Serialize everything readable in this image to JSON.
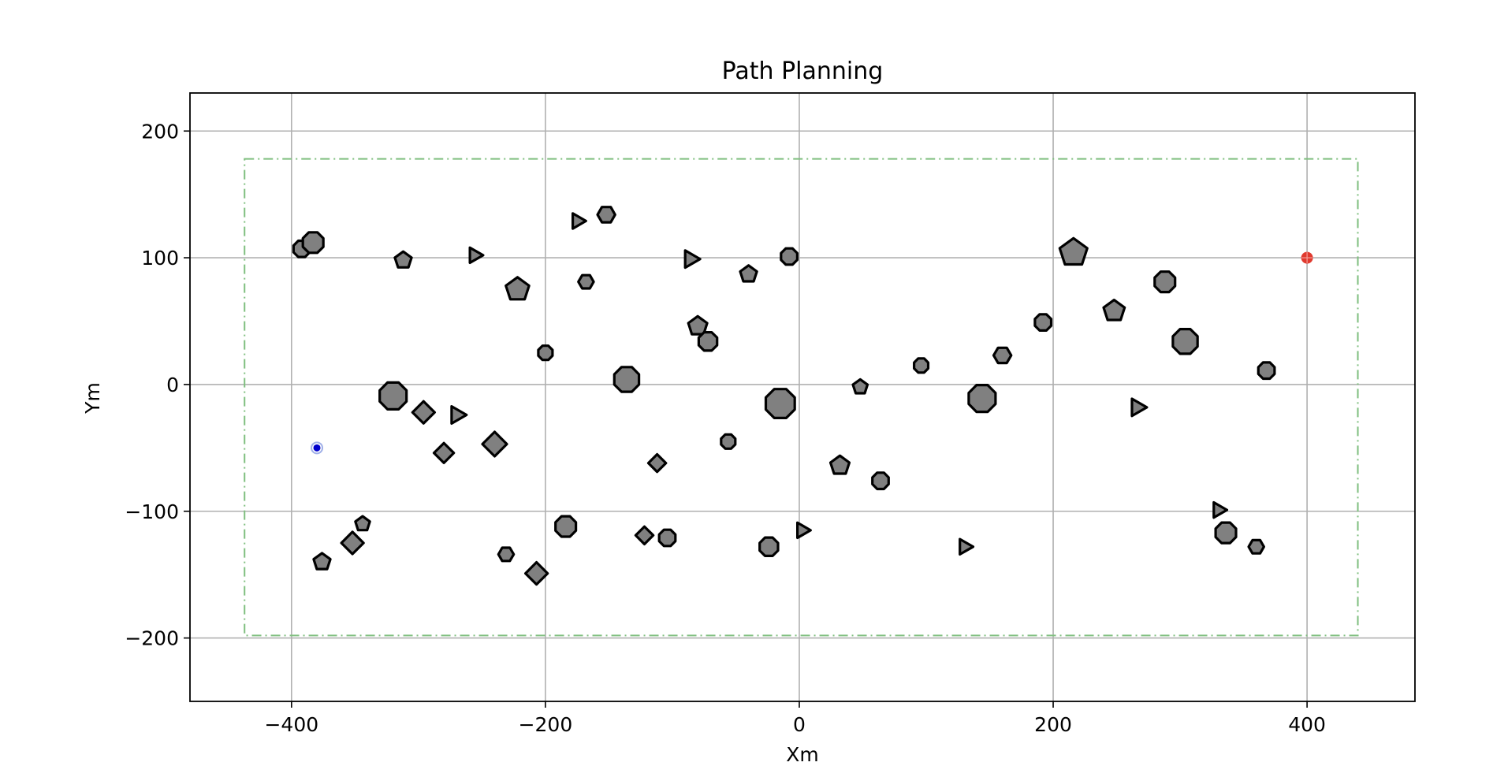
{
  "chart_data": {
    "type": "scatter",
    "title": "Path Planning",
    "xlabel": "Xm",
    "ylabel": "Ym",
    "xlim": [
      -480,
      485
    ],
    "ylim": [
      -250,
      230
    ],
    "xticks": [
      -400,
      -200,
      0,
      200,
      400
    ],
    "yticks": [
      -200,
      -100,
      0,
      100,
      200
    ],
    "xtick_labels": [
      "−400",
      "−200",
      "0",
      "200",
      "400"
    ],
    "ytick_labels": [
      "−200",
      "−100",
      "0",
      "100",
      "200"
    ],
    "grid": true,
    "boundary": {
      "x": [
        -437,
        440
      ],
      "y": [
        -198,
        178
      ],
      "color": "#7fbf7f",
      "style": "dash-dot"
    },
    "start": {
      "x": -380,
      "y": -50,
      "color": "#0000cc"
    },
    "goal": {
      "x": 400,
      "y": 100,
      "color": "#e03a2f"
    },
    "obstacle_color": "#808080",
    "obstacles": [
      {
        "x": -392,
        "y": 107,
        "shape": "octagon",
        "size": 7
      },
      {
        "x": -383,
        "y": 112,
        "shape": "octagon",
        "size": 9
      },
      {
        "x": -312,
        "y": 98,
        "shape": "pentagon",
        "size": 7
      },
      {
        "x": -256,
        "y": 102,
        "shape": "triangle",
        "size": 7
      },
      {
        "x": -222,
        "y": 75,
        "shape": "pentagon",
        "size": 10
      },
      {
        "x": -175,
        "y": 129,
        "shape": "triangle",
        "size": 7
      },
      {
        "x": -152,
        "y": 134,
        "shape": "hexagon",
        "size": 7
      },
      {
        "x": -168,
        "y": 81,
        "shape": "hexagon",
        "size": 6
      },
      {
        "x": -200,
        "y": 25,
        "shape": "octagon",
        "size": 6
      },
      {
        "x": -320,
        "y": -9,
        "shape": "octagon",
        "size": 12
      },
      {
        "x": -296,
        "y": -22,
        "shape": "square",
        "size": 9
      },
      {
        "x": -270,
        "y": -24,
        "shape": "triangle",
        "size": 8
      },
      {
        "x": -240,
        "y": -47,
        "shape": "square",
        "size": 10
      },
      {
        "x": -280,
        "y": -54,
        "shape": "square",
        "size": 8
      },
      {
        "x": -136,
        "y": 4,
        "shape": "octagon",
        "size": 11
      },
      {
        "x": -86,
        "y": 99,
        "shape": "triangle",
        "size": 8
      },
      {
        "x": -40,
        "y": 87,
        "shape": "pentagon",
        "size": 7
      },
      {
        "x": -8,
        "y": 101,
        "shape": "octagon",
        "size": 7
      },
      {
        "x": -80,
        "y": 46,
        "shape": "pentagon",
        "size": 8
      },
      {
        "x": -72,
        "y": 34,
        "shape": "octagon",
        "size": 8
      },
      {
        "x": -15,
        "y": -15,
        "shape": "octagon",
        "size": 13
      },
      {
        "x": -56,
        "y": -45,
        "shape": "octagon",
        "size": 6
      },
      {
        "x": -112,
        "y": -62,
        "shape": "square",
        "size": 7
      },
      {
        "x": -184,
        "y": -112,
        "shape": "octagon",
        "size": 9
      },
      {
        "x": -122,
        "y": -119,
        "shape": "square",
        "size": 7
      },
      {
        "x": -104,
        "y": -121,
        "shape": "octagon",
        "size": 7
      },
      {
        "x": -231,
        "y": -134,
        "shape": "hexagon",
        "size": 6
      },
      {
        "x": -207,
        "y": -149,
        "shape": "square",
        "size": 9
      },
      {
        "x": -344,
        "y": -110,
        "shape": "pentagon",
        "size": 6
      },
      {
        "x": -352,
        "y": -125,
        "shape": "square",
        "size": 9
      },
      {
        "x": -376,
        "y": -140,
        "shape": "pentagon",
        "size": 7
      },
      {
        "x": -24,
        "y": -128,
        "shape": "octagon",
        "size": 8
      },
      {
        "x": 2,
        "y": -115,
        "shape": "triangle",
        "size": 7
      },
      {
        "x": 32,
        "y": -64,
        "shape": "pentagon",
        "size": 8
      },
      {
        "x": 64,
        "y": -76,
        "shape": "octagon",
        "size": 7
      },
      {
        "x": 48,
        "y": -2,
        "shape": "pentagon",
        "size": 6
      },
      {
        "x": 96,
        "y": 15,
        "shape": "octagon",
        "size": 6
      },
      {
        "x": 130,
        "y": -128,
        "shape": "triangle",
        "size": 7
      },
      {
        "x": 144,
        "y": -11,
        "shape": "octagon",
        "size": 12
      },
      {
        "x": 160,
        "y": 23,
        "shape": "hexagon",
        "size": 7
      },
      {
        "x": 192,
        "y": 49,
        "shape": "octagon",
        "size": 7
      },
      {
        "x": 216,
        "y": 104,
        "shape": "pentagon",
        "size": 12
      },
      {
        "x": 248,
        "y": 58,
        "shape": "pentagon",
        "size": 9
      },
      {
        "x": 288,
        "y": 81,
        "shape": "octagon",
        "size": 9
      },
      {
        "x": 304,
        "y": 34,
        "shape": "octagon",
        "size": 11
      },
      {
        "x": 266,
        "y": -18,
        "shape": "triangle",
        "size": 8
      },
      {
        "x": 368,
        "y": 11,
        "shape": "octagon",
        "size": 7
      },
      {
        "x": 330,
        "y": -99,
        "shape": "triangle",
        "size": 7
      },
      {
        "x": 336,
        "y": -117,
        "shape": "octagon",
        "size": 9
      },
      {
        "x": 360,
        "y": -128,
        "shape": "hexagon",
        "size": 6
      }
    ]
  }
}
